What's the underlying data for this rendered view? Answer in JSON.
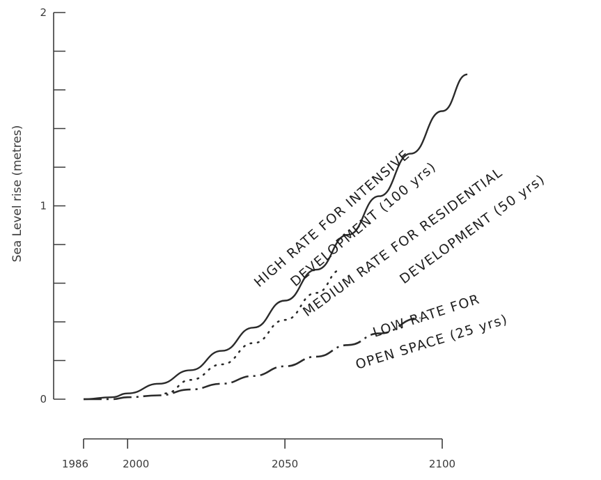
{
  "chart_data": {
    "type": "line",
    "title": "",
    "xlabel": "",
    "ylabel": "Sea Level rise (metres)",
    "xlim": [
      1986,
      2110
    ],
    "ylim": [
      0,
      2
    ],
    "x_ticks": [
      1986,
      2000,
      2050,
      2100
    ],
    "x_tick_labels": [
      "1986",
      "2000",
      "2050",
      "2100"
    ],
    "y_ticks": [
      0,
      1,
      2
    ],
    "y_tick_labels": [
      "0",
      "1",
      "2"
    ],
    "y_minor_ticks": [
      0.2,
      0.4,
      0.6,
      0.8,
      1.2,
      1.4,
      1.6,
      1.8
    ],
    "grid": false,
    "series": [
      {
        "style": "solid",
        "x": [
          1986,
          1995,
          2000,
          2010,
          2020,
          2030,
          2040,
          2050,
          2060,
          2070,
          2080,
          2090,
          2100,
          2108
        ],
        "y": [
          0.0,
          0.01,
          0.03,
          0.08,
          0.15,
          0.25,
          0.37,
          0.51,
          0.67,
          0.85,
          1.05,
          1.27,
          1.49,
          1.68
        ]
      },
      {
        "style": "dotted",
        "x": [
          2012,
          2020,
          2030,
          2040,
          2050,
          2060,
          2068
        ],
        "y": [
          0.03,
          0.1,
          0.18,
          0.29,
          0.41,
          0.55,
          0.67
        ]
      },
      {
        "style": "dashdot",
        "x": [
          1986,
          1995,
          2000,
          2010,
          2020,
          2030,
          2040,
          2050,
          2060,
          2070,
          2080,
          2093
        ],
        "y": [
          0.0,
          0.0,
          0.01,
          0.02,
          0.05,
          0.08,
          0.12,
          0.17,
          0.22,
          0.28,
          0.34,
          0.42
        ]
      }
    ],
    "annotations": [
      {
        "text": "HIGH RATE FOR INTENSIVE"
      },
      {
        "text": "DEVELOPMENT (100 yrs)"
      },
      {
        "text": "MEDIUM RATE FOR RESIDENTIAL"
      },
      {
        "text": "DEVELOPMENT (50 yrs)"
      },
      {
        "text": "LOW RATE FOR"
      },
      {
        "text": "OPEN SPACE (25 yrs)"
      }
    ]
  }
}
